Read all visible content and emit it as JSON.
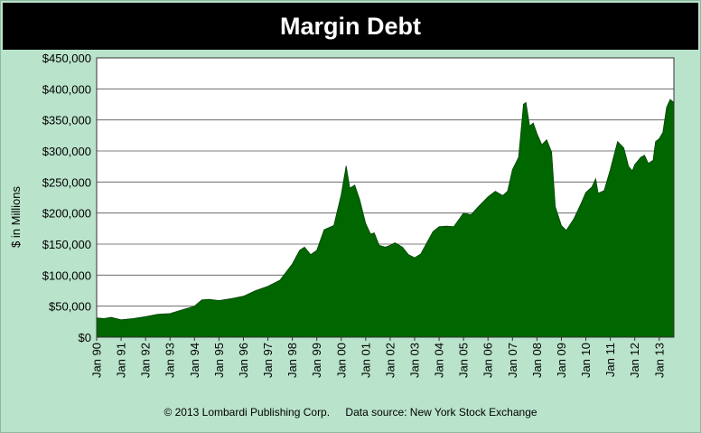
{
  "chart_data": {
    "type": "area",
    "title": "Margin Debt",
    "ylabel": "$ in Millions",
    "xlabel": "",
    "ylim": [
      0,
      450000
    ],
    "grid": "horizontal",
    "color": "#006600",
    "x_ticks": [
      "Jan 90",
      "Jan 91",
      "Jan 92",
      "Jan 93",
      "Jan 94",
      "Jan 95",
      "Jan 96",
      "Jan 97",
      "Jan 98",
      "Jan 99",
      "Jan 00",
      "Jan 01",
      "Jan 02",
      "Jan 03",
      "Jan 04",
      "Jan 05",
      "Jan 06",
      "Jan 07",
      "Jan 08",
      "Jan 09",
      "Jan 10",
      "Jan 11",
      "Jan 12",
      "Jan 13"
    ],
    "y_ticks": [
      "$0",
      "$50,000",
      "$100,000",
      "$150,000",
      "$200,000",
      "$250,000",
      "$300,000",
      "$350,000",
      "$400,000",
      "$450,000"
    ],
    "series": [
      {
        "points": [
          [
            1990.0,
            31000
          ],
          [
            1990.3,
            30000
          ],
          [
            1990.6,
            32000
          ],
          [
            1991.0,
            28000
          ],
          [
            1991.5,
            30000
          ],
          [
            1992.0,
            33000
          ],
          [
            1992.5,
            37000
          ],
          [
            1993.0,
            38000
          ],
          [
            1993.5,
            44000
          ],
          [
            1994.0,
            50000
          ],
          [
            1994.3,
            60000
          ],
          [
            1994.6,
            61000
          ],
          [
            1995.0,
            59000
          ],
          [
            1995.5,
            62000
          ],
          [
            1996.0,
            66000
          ],
          [
            1996.5,
            75000
          ],
          [
            1997.0,
            82000
          ],
          [
            1997.5,
            92000
          ],
          [
            1998.0,
            118000
          ],
          [
            1998.3,
            140000
          ],
          [
            1998.5,
            145000
          ],
          [
            1998.75,
            133000
          ],
          [
            1999.0,
            140000
          ],
          [
            1999.3,
            173000
          ],
          [
            1999.7,
            180000
          ],
          [
            2000.0,
            230000
          ],
          [
            2000.2,
            276000
          ],
          [
            2000.35,
            240000
          ],
          [
            2000.55,
            245000
          ],
          [
            2000.75,
            222000
          ],
          [
            2001.0,
            183000
          ],
          [
            2001.2,
            166000
          ],
          [
            2001.35,
            168000
          ],
          [
            2001.55,
            148000
          ],
          [
            2001.8,
            145000
          ],
          [
            2002.0,
            148000
          ],
          [
            2002.2,
            152000
          ],
          [
            2002.5,
            145000
          ],
          [
            2002.75,
            133000
          ],
          [
            2003.0,
            128000
          ],
          [
            2003.25,
            134000
          ],
          [
            2003.5,
            152000
          ],
          [
            2003.75,
            170000
          ],
          [
            2004.0,
            178000
          ],
          [
            2004.3,
            179000
          ],
          [
            2004.6,
            178000
          ],
          [
            2005.0,
            200000
          ],
          [
            2005.3,
            197000
          ],
          [
            2005.6,
            210000
          ],
          [
            2006.0,
            226000
          ],
          [
            2006.3,
            235000
          ],
          [
            2006.6,
            228000
          ],
          [
            2006.8,
            235000
          ],
          [
            2007.0,
            270000
          ],
          [
            2007.25,
            290000
          ],
          [
            2007.45,
            375000
          ],
          [
            2007.55,
            378000
          ],
          [
            2007.7,
            340000
          ],
          [
            2007.85,
            345000
          ],
          [
            2008.0,
            328000
          ],
          [
            2008.2,
            310000
          ],
          [
            2008.4,
            318000
          ],
          [
            2008.6,
            298000
          ],
          [
            2008.75,
            210000
          ],
          [
            2009.0,
            180000
          ],
          [
            2009.2,
            172000
          ],
          [
            2009.5,
            190000
          ],
          [
            2009.8,
            215000
          ],
          [
            2010.0,
            233000
          ],
          [
            2010.25,
            242000
          ],
          [
            2010.4,
            255000
          ],
          [
            2010.5,
            232000
          ],
          [
            2010.75,
            236000
          ],
          [
            2011.0,
            270000
          ],
          [
            2011.3,
            315000
          ],
          [
            2011.55,
            305000
          ],
          [
            2011.75,
            275000
          ],
          [
            2011.9,
            268000
          ],
          [
            2012.0,
            278000
          ],
          [
            2012.25,
            290000
          ],
          [
            2012.4,
            293000
          ],
          [
            2012.55,
            280000
          ],
          [
            2012.75,
            285000
          ],
          [
            2012.85,
            315000
          ],
          [
            2013.0,
            320000
          ],
          [
            2013.15,
            330000
          ],
          [
            2013.3,
            370000
          ],
          [
            2013.45,
            383000
          ],
          [
            2013.6,
            378000
          ]
        ]
      }
    ]
  },
  "footer": {
    "copyright": "© 2013 Lombardi Publishing Corp.",
    "source": "Data source: New York Stock Exchange"
  }
}
